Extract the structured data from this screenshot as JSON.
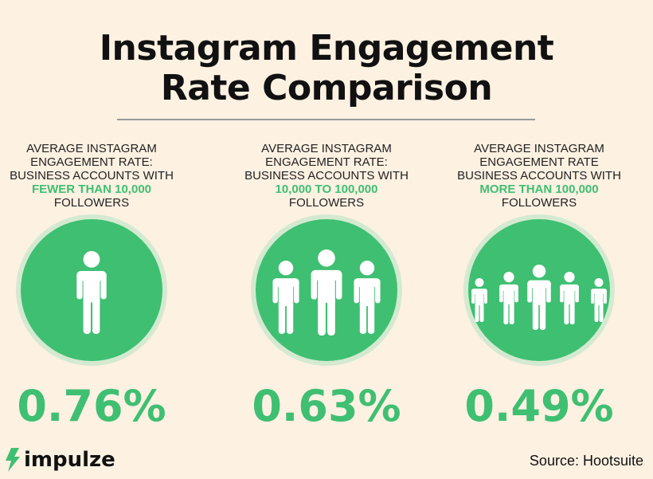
{
  "title": {
    "line1": "Instagram Engagement",
    "line2": "Rate Comparison"
  },
  "columns": [
    {
      "line1": "AVERAGE INSTAGRAM",
      "line2": "ENGAGEMENT RATE:",
      "line3": "BUSINESS ACCOUNTS WITH",
      "highlight": "FEWER THAN 10,000",
      "line5": "FOLLOWERS",
      "value": "0.76%",
      "icon": "single-person-icon"
    },
    {
      "line1": "AVERAGE INSTAGRAM",
      "line2": "ENGAGEMENT RATE:",
      "line3": "BUSINESS ACCOUNTS WITH",
      "highlight": "10,000 TO 100,000",
      "line5": "FOLLOWERS",
      "value": "0.63%",
      "icon": "three-people-icon"
    },
    {
      "line1": "AVERAGE INSTAGRAM",
      "line2": "ENGAGEMENT RATE",
      "line3": "BUSINESS ACCOUNTS WITH",
      "highlight": "MORE THAN 100,000",
      "line5": "FOLLOWERS",
      "value": "0.49%",
      "icon": "five-people-icon"
    }
  ],
  "footer": {
    "brand": "impulze",
    "source": "Source:  Hootsuite"
  },
  "colors": {
    "accent": "#3fbf72",
    "ring": "#d4ead0",
    "background": "#fdf1e2"
  }
}
